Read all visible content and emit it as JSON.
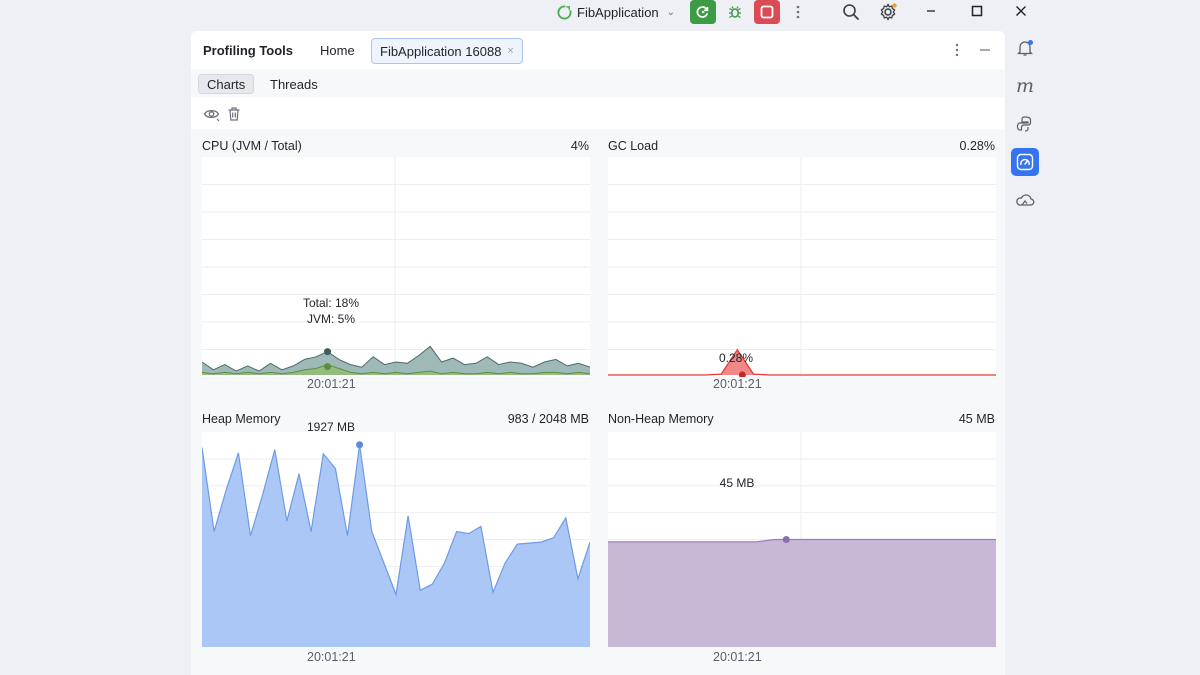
{
  "titlebar": {
    "run_config": "FibApplication",
    "icons": [
      "rerun-icon",
      "debug-icon",
      "stop-icon",
      "more-icon",
      "search-icon",
      "settings-icon",
      "minimize-icon",
      "maximize-icon",
      "close-icon"
    ]
  },
  "panel": {
    "title": "Profiling Tools",
    "tabs": [
      {
        "label": "Home",
        "active": false
      },
      {
        "label": "FibApplication 16088",
        "active": true,
        "closable": true
      }
    ],
    "subtabs": [
      {
        "label": "Charts",
        "active": true
      },
      {
        "label": "Threads",
        "active": false
      }
    ]
  },
  "charts": {
    "cpu": {
      "title": "CPU (JVM / Total)",
      "value": "4%",
      "time": "20:01:21",
      "marker_total": "Total: 18%",
      "marker_jvm": "JVM: 5%"
    },
    "gc": {
      "title": "GC Load",
      "value": "0.28%",
      "time": "20:01:21",
      "marker": "0.28%"
    },
    "heap": {
      "title": "Heap Memory",
      "value": "983 / 2048 MB",
      "time": "20:01:21",
      "marker": "1927 MB"
    },
    "nonheap": {
      "title": "Non-Heap Memory",
      "value": "45 MB",
      "time": "20:01:21",
      "marker": "45 MB"
    }
  },
  "colors": {
    "cpu_total": "#7fa0a0",
    "cpu_jvm": "#8fbf6a",
    "gc": "#e53935",
    "heap": "#a7c4f5",
    "nonheap": "#c4b4d4",
    "accent": "#3574f0"
  },
  "chart_data": [
    {
      "type": "area",
      "title": "CPU (JVM / Total)",
      "series": [
        {
          "name": "Total",
          "values": [
            10,
            4,
            8,
            3,
            7,
            3,
            9,
            4,
            7,
            12,
            14,
            18,
            12,
            8,
            6,
            14,
            8,
            10,
            9,
            15,
            22,
            10,
            13,
            8,
            9,
            14,
            8,
            10,
            9,
            6,
            10,
            12,
            7,
            9,
            6
          ]
        },
        {
          "name": "JVM",
          "values": [
            2,
            1,
            2,
            1,
            2,
            1,
            2,
            1,
            2,
            4,
            5,
            8,
            5,
            2,
            1,
            2,
            1,
            2,
            1,
            2,
            3,
            1,
            2,
            1,
            1,
            2,
            1,
            2,
            1,
            1,
            2,
            2,
            1,
            2,
            1
          ]
        }
      ],
      "ylim": [
        0,
        100
      ]
    },
    {
      "type": "line",
      "title": "GC Load",
      "series": [
        {
          "name": "GC Load",
          "values": [
            0,
            0,
            0,
            0,
            0,
            0,
            0,
            0.01,
            0.28,
            0.01,
            0,
            0,
            0,
            0,
            0,
            0,
            0,
            0,
            0,
            0,
            0,
            0,
            0,
            0,
            0
          ]
        }
      ],
      "ylim": [
        0,
        1
      ]
    },
    {
      "type": "area",
      "title": "Heap Memory",
      "series": [
        {
          "name": "Heap",
          "values": [
            1900,
            1100,
            1500,
            1850,
            1060,
            1450,
            1880,
            1200,
            1650,
            1100,
            1840,
            1700,
            1060,
            1927,
            1100,
            800,
            500,
            1250,
            540,
            600,
            800,
            1100,
            1080,
            1150,
            520,
            800,
            980,
            990,
            1000,
            1040,
            1230,
            650,
            1000
          ]
        }
      ],
      "ylim": [
        0,
        2048
      ]
    },
    {
      "type": "area",
      "title": "Non-Heap Memory",
      "series": [
        {
          "name": "Non-Heap",
          "values": [
            44,
            44,
            44,
            44,
            44,
            44,
            44,
            44,
            44,
            45,
            45,
            45,
            45,
            45,
            45,
            45,
            45,
            45,
            45,
            45,
            45,
            45
          ]
        }
      ],
      "ylim": [
        0,
        90
      ]
    }
  ]
}
